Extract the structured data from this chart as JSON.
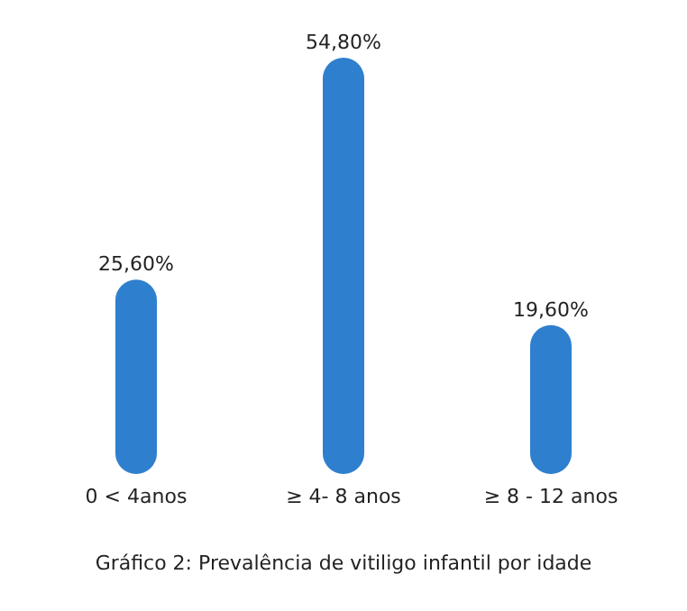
{
  "chart_data": {
    "type": "bar",
    "title": "Gráfico 2: Prevalência de vitiligo infantil por idade",
    "categories": [
      "0 < 4anos",
      "≥ 4- 8 anos",
      "≥ 8 - 12 anos"
    ],
    "values": [
      25.6,
      54.8,
      19.6
    ],
    "value_labels": [
      "25,60%",
      "54,80%",
      "19,60%"
    ],
    "color": "#2f7fcf"
  }
}
